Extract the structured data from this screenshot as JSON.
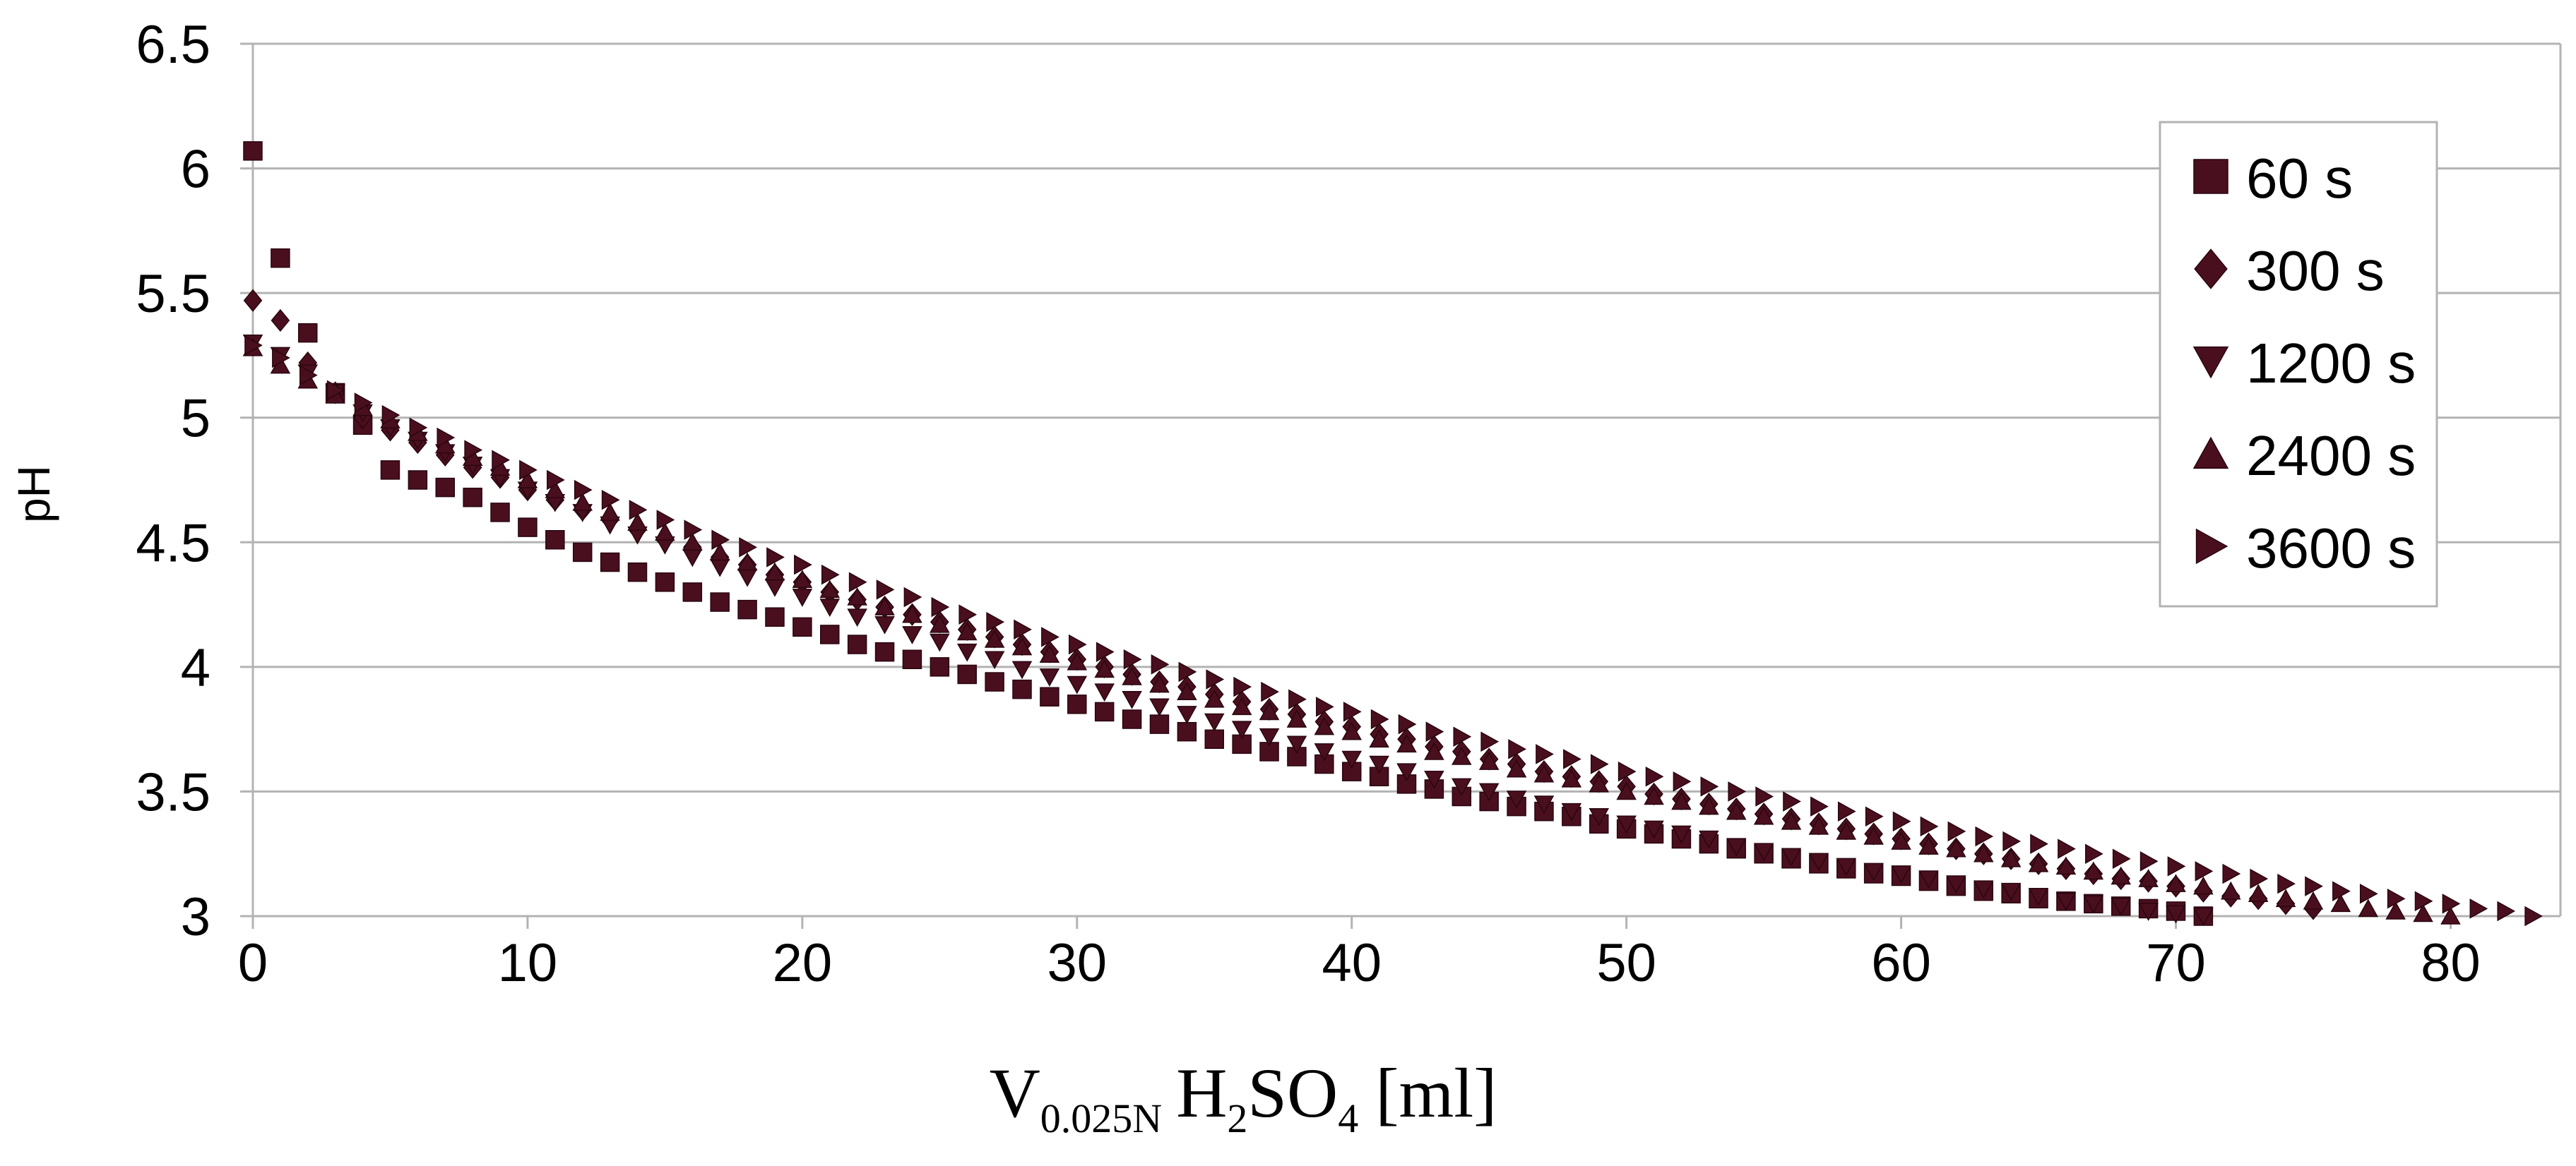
{
  "chart_data": {
    "type": "scatter",
    "title": "",
    "xlabel": {
      "symbol": "V",
      "subscript": "0.025N",
      "reagent": [
        "H",
        "2",
        "SO",
        "4"
      ],
      "unit": "[ml]"
    },
    "ylabel": "pH",
    "xlim": [
      0,
      84
    ],
    "ylim": [
      3,
      6.5
    ],
    "xticks": [
      0,
      10,
      20,
      30,
      40,
      50,
      60,
      70,
      80
    ],
    "yticks": [
      3,
      3.5,
      4,
      4.5,
      5,
      5.5,
      6,
      6.5
    ],
    "ytick_labels": [
      "3",
      "3.5",
      "4",
      "4.5",
      "5",
      "5.5",
      "6",
      "6.5"
    ],
    "grid": true,
    "legend_position": "top-right",
    "marker_color": "#4a0f1e",
    "series": [
      {
        "name": "60 s",
        "marker": "square",
        "x": [
          0,
          1,
          2,
          3,
          4,
          5,
          6,
          7,
          8,
          9,
          10,
          11,
          12,
          13,
          14,
          15,
          16,
          17,
          18,
          19,
          20,
          21,
          22,
          23,
          24,
          25,
          26,
          27,
          28,
          29,
          30,
          31,
          32,
          33,
          34,
          35,
          36,
          37,
          38,
          39,
          40,
          41,
          42,
          43,
          44,
          45,
          46,
          47,
          48,
          49,
          50,
          51,
          52,
          53,
          54,
          55,
          56,
          57,
          58,
          59,
          60,
          61,
          62,
          63,
          64,
          65,
          66,
          67,
          68,
          69,
          70,
          71
        ],
        "y": [
          6.07,
          5.64,
          5.34,
          5.1,
          4.97,
          4.79,
          4.75,
          4.72,
          4.68,
          4.62,
          4.56,
          4.51,
          4.46,
          4.42,
          4.38,
          4.34,
          4.3,
          4.26,
          4.23,
          4.2,
          4.16,
          4.13,
          4.09,
          4.06,
          4.03,
          4.0,
          3.97,
          3.94,
          3.91,
          3.88,
          3.85,
          3.82,
          3.79,
          3.77,
          3.74,
          3.71,
          3.69,
          3.66,
          3.64,
          3.61,
          3.58,
          3.56,
          3.53,
          3.51,
          3.48,
          3.46,
          3.44,
          3.42,
          3.4,
          3.37,
          3.35,
          3.33,
          3.31,
          3.29,
          3.27,
          3.25,
          3.23,
          3.21,
          3.19,
          3.17,
          3.16,
          3.14,
          3.12,
          3.1,
          3.09,
          3.07,
          3.06,
          3.05,
          3.04,
          3.03,
          3.02,
          3.0
        ]
      },
      {
        "name": "300 s",
        "marker": "diamond",
        "x": [
          0,
          1,
          2,
          3,
          4,
          5,
          6,
          7,
          8,
          9,
          10,
          11,
          12,
          13,
          14,
          15,
          16,
          17,
          18,
          19,
          20,
          21,
          22,
          23,
          24,
          25,
          26,
          27,
          28,
          29,
          30,
          31,
          32,
          33,
          34,
          35,
          36,
          37,
          38,
          39,
          40,
          41,
          42,
          43,
          44,
          45,
          46,
          47,
          48,
          49,
          50,
          51,
          52,
          53,
          54,
          55,
          56,
          57,
          58,
          59,
          60,
          61,
          62,
          63,
          64,
          65,
          66,
          67,
          68,
          69,
          70,
          71,
          72,
          73,
          74,
          75
        ],
        "y": [
          5.47,
          5.39,
          5.22,
          5.1,
          5.0,
          4.95,
          4.9,
          4.85,
          4.8,
          4.76,
          4.71,
          4.67,
          4.63,
          4.59,
          4.55,
          4.51,
          4.48,
          4.44,
          4.41,
          4.37,
          4.34,
          4.3,
          4.27,
          4.24,
          4.21,
          4.18,
          4.15,
          4.12,
          4.09,
          4.06,
          4.03,
          4.0,
          3.97,
          3.94,
          3.92,
          3.89,
          3.86,
          3.83,
          3.81,
          3.78,
          3.76,
          3.73,
          3.71,
          3.68,
          3.66,
          3.63,
          3.61,
          3.58,
          3.56,
          3.54,
          3.52,
          3.49,
          3.47,
          3.45,
          3.43,
          3.41,
          3.39,
          3.37,
          3.35,
          3.33,
          3.31,
          3.29,
          3.27,
          3.25,
          3.23,
          3.21,
          3.19,
          3.17,
          3.15,
          3.14,
          3.12,
          3.1,
          3.08,
          3.07,
          3.05,
          3.03
        ]
      },
      {
        "name": "1200 s",
        "marker": "triangle-down",
        "x": [
          0,
          1,
          2,
          3,
          4,
          5,
          6,
          7,
          8,
          9,
          10,
          11,
          12,
          13,
          14,
          15,
          16,
          17,
          18,
          19,
          20,
          21,
          22,
          23,
          24,
          25,
          26,
          27,
          28,
          29,
          30,
          31,
          32,
          33,
          34,
          35,
          36,
          37,
          38,
          39,
          40,
          41,
          42,
          43,
          44,
          45,
          46,
          47,
          48,
          49,
          50,
          51,
          52,
          53,
          54,
          55,
          56,
          57,
          58,
          59,
          60,
          61,
          62,
          63,
          64,
          65,
          66,
          67,
          68,
          69,
          70,
          71
        ],
        "y": [
          5.3,
          5.25,
          5.18,
          5.1,
          5.02,
          4.96,
          4.91,
          4.86,
          4.81,
          4.76,
          4.71,
          4.66,
          4.62,
          4.57,
          4.53,
          4.49,
          4.44,
          4.4,
          4.36,
          4.32,
          4.28,
          4.24,
          4.2,
          4.17,
          4.13,
          4.1,
          4.06,
          4.03,
          3.99,
          3.96,
          3.93,
          3.9,
          3.87,
          3.84,
          3.81,
          3.78,
          3.75,
          3.72,
          3.69,
          3.66,
          3.63,
          3.61,
          3.58,
          3.55,
          3.52,
          3.5,
          3.47,
          3.45,
          3.42,
          3.4,
          3.37,
          3.35,
          3.33,
          3.31,
          3.28,
          3.26,
          3.24,
          3.22,
          3.2,
          3.18,
          3.17,
          3.15,
          3.13,
          3.11,
          3.1,
          3.08,
          3.06,
          3.05,
          3.04,
          3.02,
          3.01,
          3.0
        ]
      },
      {
        "name": "2400 s",
        "marker": "triangle-up",
        "x": [
          0,
          1,
          2,
          3,
          4,
          5,
          6,
          7,
          8,
          9,
          10,
          11,
          12,
          13,
          14,
          15,
          16,
          17,
          18,
          19,
          20,
          21,
          22,
          23,
          24,
          25,
          26,
          27,
          28,
          29,
          30,
          31,
          32,
          33,
          34,
          35,
          36,
          37,
          38,
          39,
          40,
          41,
          42,
          43,
          44,
          45,
          46,
          47,
          48,
          49,
          50,
          51,
          52,
          53,
          54,
          55,
          56,
          57,
          58,
          59,
          60,
          61,
          62,
          63,
          64,
          65,
          66,
          67,
          68,
          69,
          70,
          71,
          72,
          73,
          74,
          75,
          76,
          77,
          78,
          79,
          80
        ],
        "y": [
          5.28,
          5.21,
          5.15,
          5.09,
          5.04,
          4.99,
          4.94,
          4.89,
          4.84,
          4.8,
          4.75,
          4.71,
          4.66,
          4.62,
          4.58,
          4.54,
          4.5,
          4.46,
          4.42,
          4.38,
          4.35,
          4.31,
          4.28,
          4.24,
          4.21,
          4.17,
          4.14,
          4.11,
          4.08,
          4.05,
          4.02,
          3.99,
          3.96,
          3.93,
          3.9,
          3.87,
          3.84,
          3.82,
          3.79,
          3.76,
          3.74,
          3.71,
          3.69,
          3.66,
          3.64,
          3.62,
          3.59,
          3.57,
          3.55,
          3.53,
          3.5,
          3.48,
          3.46,
          3.44,
          3.42,
          3.4,
          3.38,
          3.36,
          3.34,
          3.32,
          3.3,
          3.28,
          3.27,
          3.25,
          3.23,
          3.21,
          3.2,
          3.18,
          3.16,
          3.15,
          3.13,
          3.12,
          3.1,
          3.09,
          3.07,
          3.06,
          3.05,
          3.03,
          3.02,
          3.01,
          3.0
        ]
      },
      {
        "name": "3600 s",
        "marker": "triangle-right",
        "x": [
          0,
          1,
          2,
          3,
          4,
          5,
          6,
          7,
          8,
          9,
          10,
          11,
          12,
          13,
          14,
          15,
          16,
          17,
          18,
          19,
          20,
          21,
          22,
          23,
          24,
          25,
          26,
          27,
          28,
          29,
          30,
          31,
          32,
          33,
          34,
          35,
          36,
          37,
          38,
          39,
          40,
          41,
          42,
          43,
          44,
          45,
          46,
          47,
          48,
          49,
          50,
          51,
          52,
          53,
          54,
          55,
          56,
          57,
          58,
          59,
          60,
          61,
          62,
          63,
          64,
          65,
          66,
          67,
          68,
          69,
          70,
          71,
          72,
          73,
          74,
          75,
          76,
          77,
          78,
          79,
          80,
          81,
          82,
          83
        ],
        "y": [
          5.29,
          5.24,
          5.17,
          5.11,
          5.06,
          5.01,
          4.96,
          4.92,
          4.87,
          4.83,
          4.79,
          4.75,
          4.71,
          4.67,
          4.63,
          4.59,
          4.55,
          4.51,
          4.48,
          4.44,
          4.41,
          4.37,
          4.34,
          4.31,
          4.28,
          4.24,
          4.21,
          4.18,
          4.15,
          4.12,
          4.09,
          4.06,
          4.03,
          4.01,
          3.98,
          3.95,
          3.92,
          3.9,
          3.87,
          3.84,
          3.82,
          3.79,
          3.77,
          3.74,
          3.72,
          3.7,
          3.67,
          3.65,
          3.63,
          3.61,
          3.58,
          3.56,
          3.54,
          3.52,
          3.5,
          3.48,
          3.46,
          3.44,
          3.42,
          3.4,
          3.38,
          3.36,
          3.34,
          3.32,
          3.3,
          3.29,
          3.27,
          3.25,
          3.23,
          3.22,
          3.2,
          3.18,
          3.17,
          3.15,
          3.13,
          3.12,
          3.1,
          3.09,
          3.07,
          3.06,
          3.05,
          3.03,
          3.02,
          3.0
        ]
      }
    ]
  }
}
